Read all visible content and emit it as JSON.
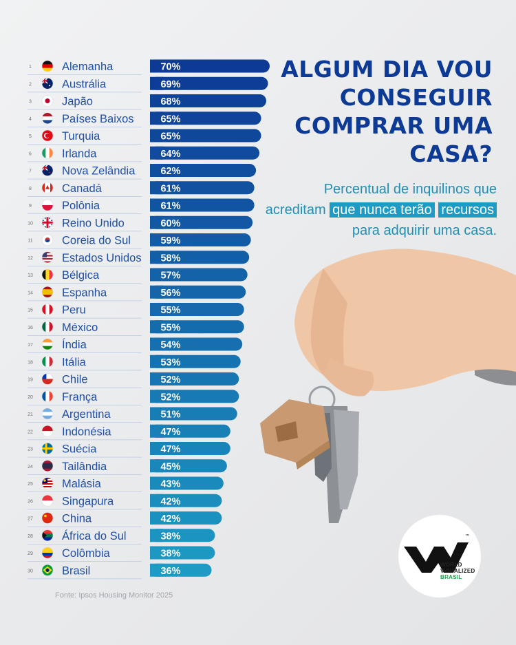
{
  "title": "ALGUM DIA VOU CONSEGUIR COMPRAR UMA CASA?",
  "subtitle": {
    "part1": "Percentual de inquilinos que acreditam ",
    "highlight1": "que nunca terão",
    "highlight2": "recursos",
    "part2": " para adquirir uma casa."
  },
  "source": "Fonte: Ipsos Housing Monitor 2025",
  "logo": {
    "line1": "WORLD",
    "line2": "VISUALIZED",
    "line3": "BRASIL",
    "tm": "™"
  },
  "colors": {
    "bar_dark": "#0d3a95",
    "bar_light": "#1d9bc4",
    "title": "#0d3a95",
    "highlight": "#1d9bc4",
    "rank_text": "#6b6f78",
    "country_text": "#1f4fa8",
    "logo_accent": "#1aa34a"
  },
  "chart_data": {
    "type": "bar",
    "orientation": "horizontal",
    "ranks": [
      1,
      2,
      3,
      4,
      5,
      6,
      7,
      8,
      9,
      10,
      11,
      12,
      13,
      14,
      15,
      16,
      17,
      18,
      19,
      20,
      21,
      22,
      23,
      24,
      25,
      26,
      27,
      28,
      29,
      30
    ],
    "categories": [
      "Alemanha",
      "Austrália",
      "Japão",
      "Países Baixos",
      "Turquia",
      "Irlanda",
      "Nova Zelândia",
      "Canadá",
      "Polônia",
      "Reino Unido",
      "Coreia do Sul",
      "Estados Unidos",
      "Bélgica",
      "Espanha",
      "Peru",
      "México",
      "Índia",
      "Itália",
      "Chile",
      "França",
      "Argentina",
      "Indonésia",
      "Suécia",
      "Tailândia",
      "Malásia",
      "Singapura",
      "China",
      "África do Sul",
      "Colômbia",
      "Brasil"
    ],
    "flags": [
      "de",
      "au",
      "jp",
      "nl",
      "tr",
      "ie",
      "nz",
      "ca",
      "pl",
      "gb",
      "kr",
      "us",
      "be",
      "es",
      "pe",
      "mx",
      "in",
      "it",
      "cl",
      "fr",
      "ar",
      "id",
      "se",
      "th",
      "my",
      "sg",
      "cn",
      "za",
      "co",
      "br"
    ],
    "values": [
      70,
      69,
      68,
      65,
      65,
      64,
      62,
      61,
      61,
      60,
      59,
      58,
      57,
      56,
      55,
      55,
      54,
      53,
      52,
      52,
      51,
      47,
      47,
      45,
      43,
      42,
      42,
      38,
      38,
      36
    ],
    "labels": [
      "70%",
      "69%",
      "68%",
      "65%",
      "65%",
      "64%",
      "62%",
      "61%",
      "61%",
      "60%",
      "59%",
      "58%",
      "57%",
      "56%",
      "55%",
      "55%",
      "54%",
      "53%",
      "52%",
      "52%",
      "51%",
      "47%",
      "47%",
      "45%",
      "43%",
      "42%",
      "42%",
      "38%",
      "38%",
      "36%"
    ]
  }
}
